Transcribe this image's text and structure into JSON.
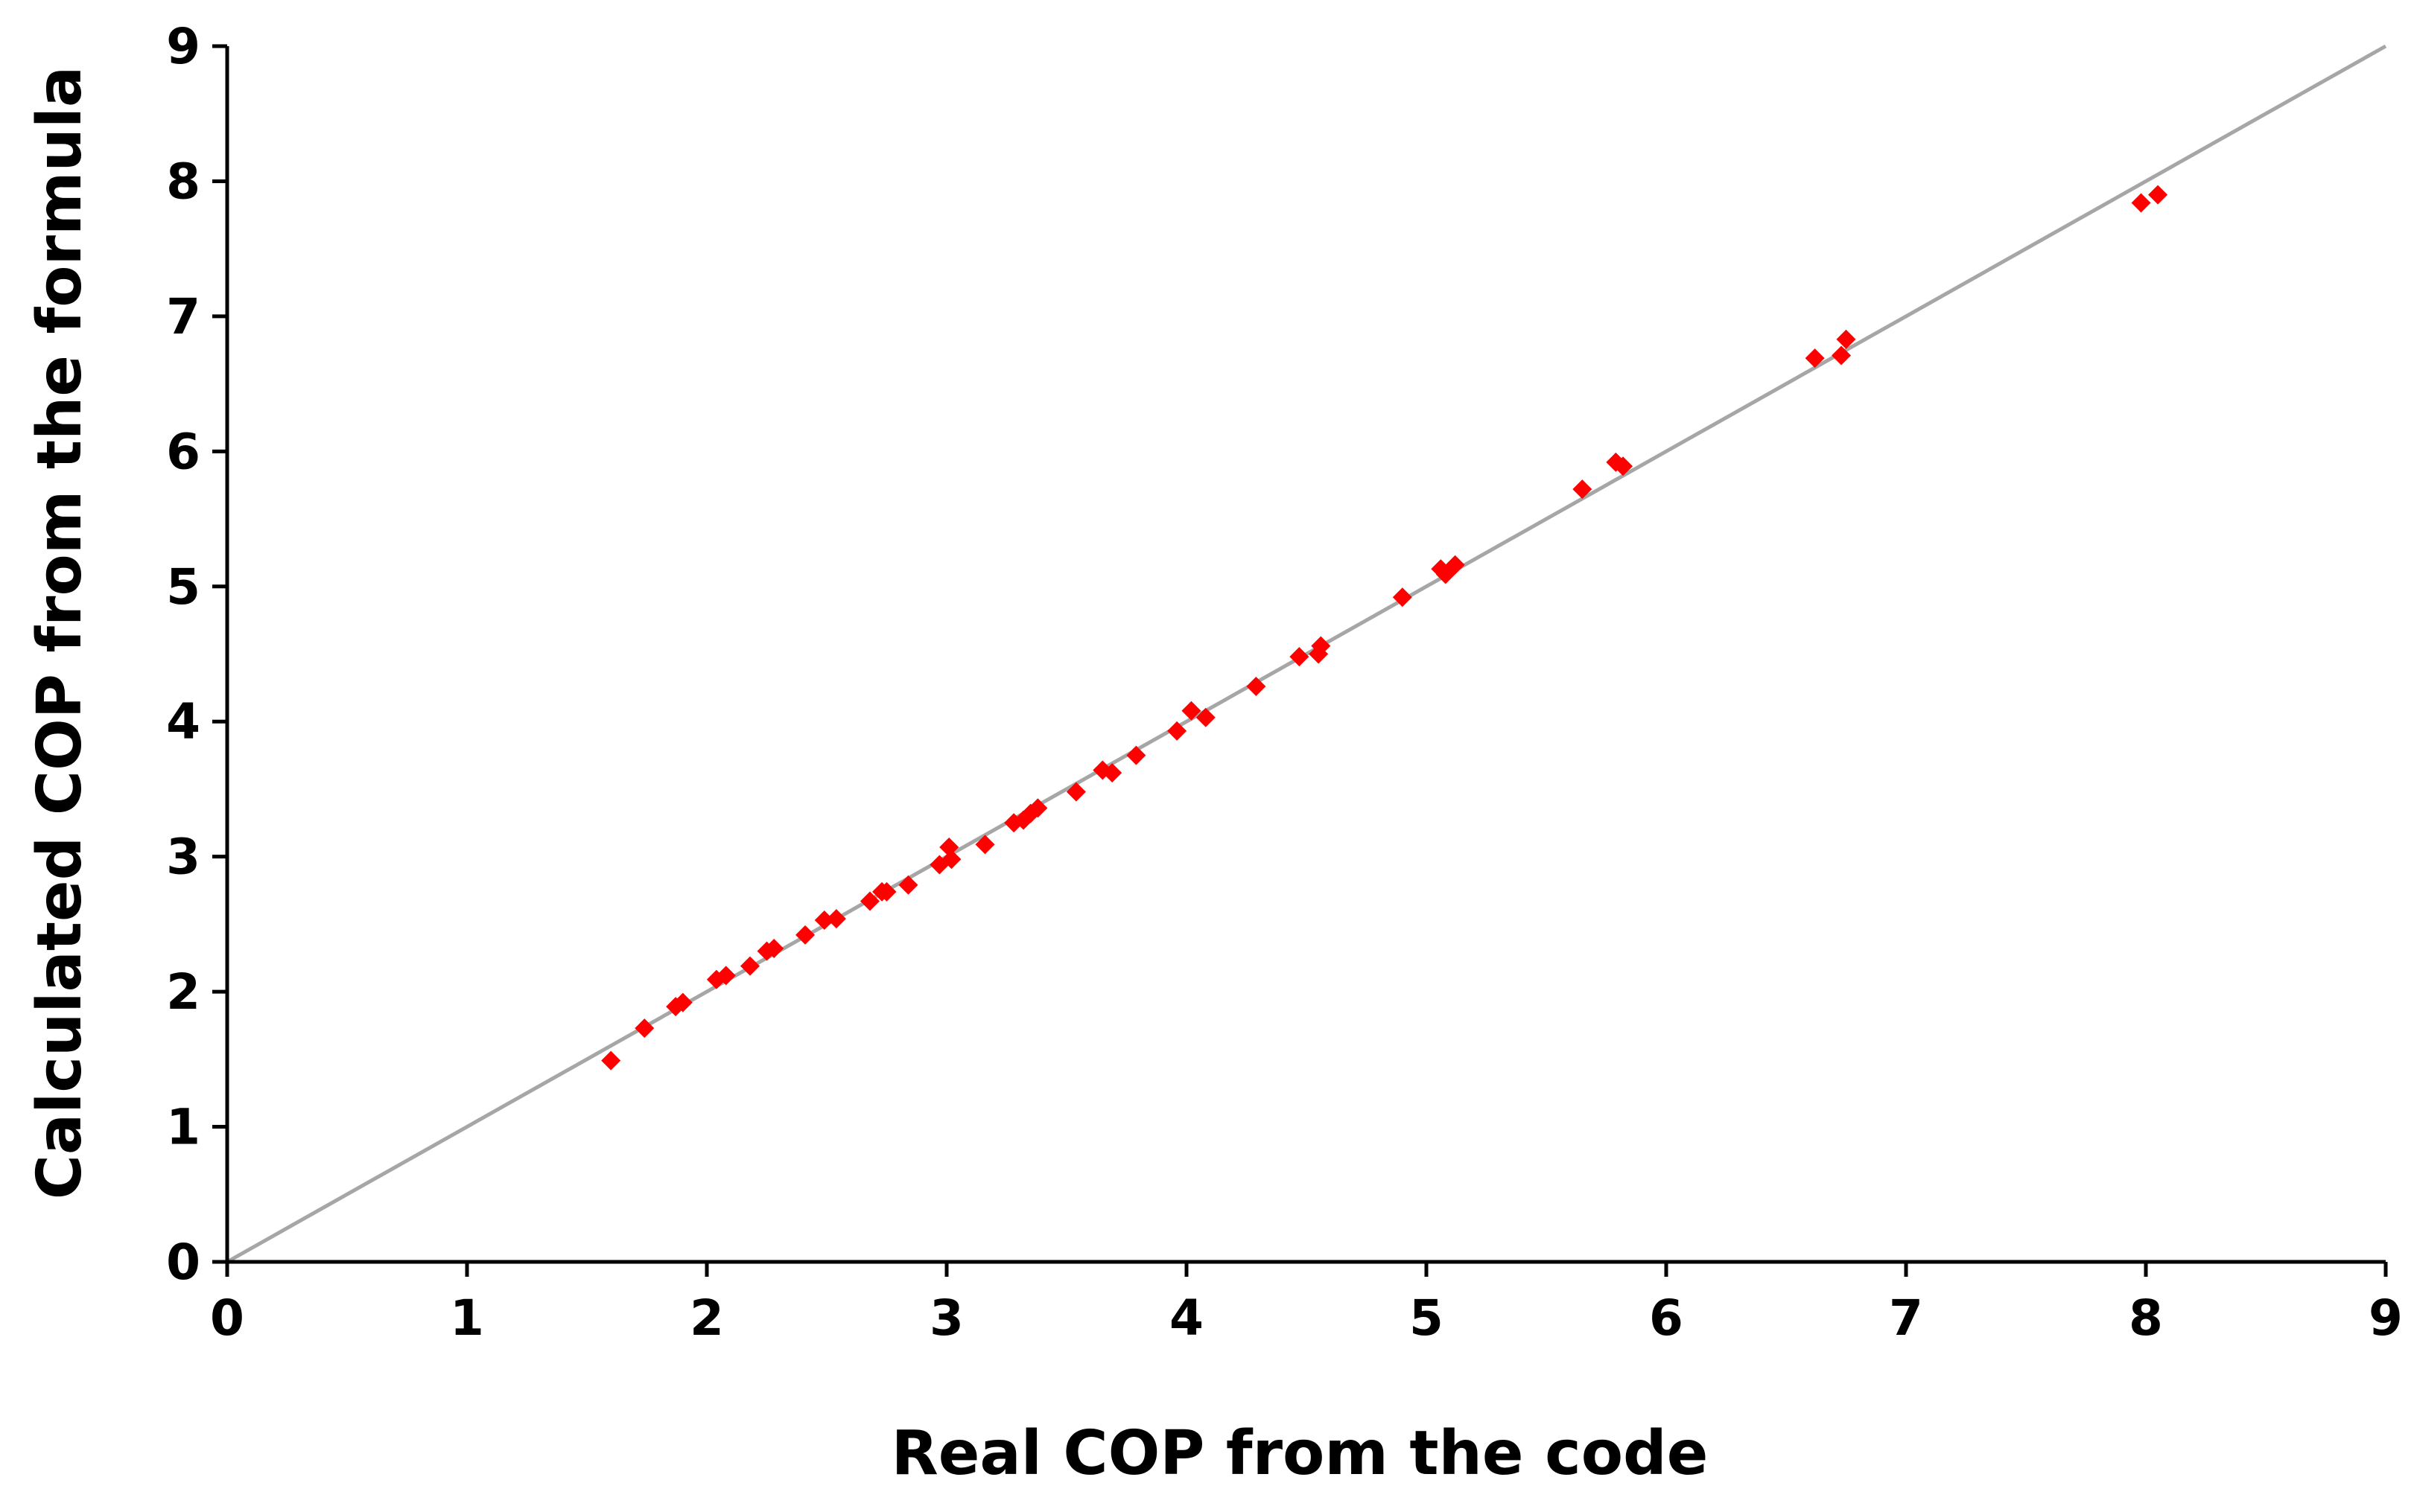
{
  "chart_data": {
    "type": "scatter",
    "title": "",
    "xlabel": "Real COP from the code",
    "ylabel": "Calculated COP from the formula",
    "xlim": [
      0,
      9
    ],
    "ylim": [
      0,
      9
    ],
    "x_ticks": [
      "0",
      "1",
      "2",
      "3",
      "4",
      "5",
      "6",
      "7",
      "8",
      "9"
    ],
    "y_ticks": [
      "0",
      "1",
      "2",
      "3",
      "4",
      "5",
      "6",
      "7",
      "8",
      "9"
    ],
    "grid": false,
    "legend": "none",
    "colors": {
      "points": "#ff0000",
      "reference_line": "#a6a6a6",
      "axes": "#000000"
    },
    "reference_line": {
      "x": [
        0,
        9
      ],
      "y": [
        0,
        9
      ]
    },
    "series": [
      {
        "marker": "diamond",
        "points": [
          [
            1.6,
            1.49
          ],
          [
            1.74,
            1.73
          ],
          [
            1.87,
            1.89
          ],
          [
            1.9,
            1.92
          ],
          [
            2.04,
            2.09
          ],
          [
            2.08,
            2.12
          ],
          [
            2.18,
            2.19
          ],
          [
            2.25,
            2.3
          ],
          [
            2.28,
            2.32
          ],
          [
            2.41,
            2.42
          ],
          [
            2.49,
            2.53
          ],
          [
            2.54,
            2.54
          ],
          [
            2.68,
            2.67
          ],
          [
            2.73,
            2.74
          ],
          [
            2.75,
            2.74
          ],
          [
            2.84,
            2.79
          ],
          [
            2.97,
            2.94
          ],
          [
            3.01,
            3.07
          ],
          [
            3.02,
            2.98
          ],
          [
            3.16,
            3.09
          ],
          [
            3.28,
            3.25
          ],
          [
            3.32,
            3.27
          ],
          [
            3.35,
            3.32
          ],
          [
            3.38,
            3.36
          ],
          [
            3.54,
            3.48
          ],
          [
            3.65,
            3.64
          ],
          [
            3.69,
            3.62
          ],
          [
            3.79,
            3.75
          ],
          [
            3.96,
            3.93
          ],
          [
            4.02,
            4.08
          ],
          [
            4.08,
            4.03
          ],
          [
            4.29,
            4.26
          ],
          [
            4.47,
            4.48
          ],
          [
            4.55,
            4.5
          ],
          [
            4.56,
            4.56
          ],
          [
            4.9,
            4.92
          ],
          [
            5.06,
            5.13
          ],
          [
            5.08,
            5.09
          ],
          [
            5.12,
            5.16
          ],
          [
            5.65,
            5.72
          ],
          [
            5.79,
            5.92
          ],
          [
            5.82,
            5.89
          ],
          [
            6.62,
            6.69
          ],
          [
            6.73,
            6.71
          ],
          [
            6.75,
            6.83
          ],
          [
            7.98,
            7.84
          ],
          [
            8.05,
            7.9
          ]
        ]
      }
    ]
  }
}
